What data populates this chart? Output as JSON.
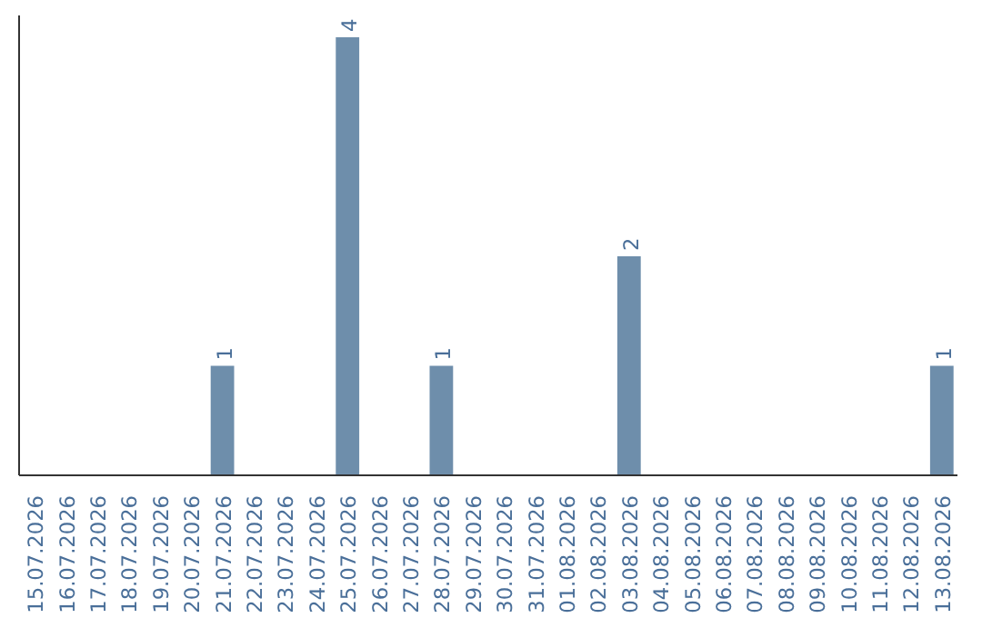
{
  "chart_data": {
    "type": "bar",
    "categories": [
      "15.07.2026",
      "16.07.2026",
      "17.07.2026",
      "18.07.2026",
      "19.07.2026",
      "20.07.2026",
      "21.07.2026",
      "22.07.2026",
      "23.07.2026",
      "24.07.2026",
      "25.07.2026",
      "26.07.2026",
      "27.07.2026",
      "28.07.2026",
      "29.07.2026",
      "30.07.2026",
      "31.07.2026",
      "01.08.2026",
      "02.08.2026",
      "03.08.2026",
      "04.08.2026",
      "05.08.2026",
      "06.08.2026",
      "07.08.2026",
      "08.08.2026",
      "09.08.2026",
      "10.08.2026",
      "11.08.2026",
      "12.08.2026",
      "13.08.2026"
    ],
    "values": [
      0,
      0,
      0,
      0,
      0,
      0,
      1,
      0,
      0,
      0,
      4,
      0,
      0,
      1,
      0,
      0,
      0,
      0,
      0,
      2,
      0,
      0,
      0,
      0,
      0,
      0,
      0,
      0,
      0,
      1
    ],
    "value_labels": [
      null,
      null,
      null,
      null,
      null,
      null,
      "1",
      null,
      null,
      null,
      "4",
      null,
      null,
      "1",
      null,
      null,
      null,
      null,
      null,
      "2",
      null,
      null,
      null,
      null,
      null,
      null,
      null,
      null,
      null,
      "1"
    ],
    "color": "#6e8eab",
    "ylim": [
      0,
      4.2
    ],
    "grid": false,
    "tick_labels": "x"
  }
}
